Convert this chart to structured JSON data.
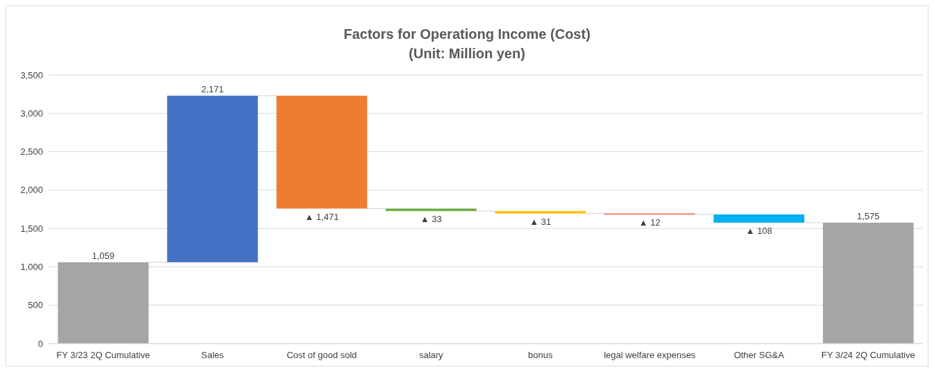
{
  "chart_data": {
    "type": "bar",
    "title": "Factors for Operationg Income (Cost)",
    "subtitle": "(Unit: Million yen)",
    "categories": [
      "FY 3/23 2Q Cumulative",
      "Sales",
      "Cost of good sold",
      "salary",
      "bonus",
      "legal welfare expenses",
      "Other SG&A",
      "FY 3/24 2Q Cumulative"
    ],
    "values": [
      1059,
      2171,
      -1471,
      -33,
      -31,
      -12,
      -108,
      1575
    ],
    "base": [
      0,
      1059,
      3230,
      1759,
      1726,
      1695,
      1683,
      0
    ],
    "colors": [
      "#a5a5a5",
      "#4472c4",
      "#ed7d31",
      "#70ad47",
      "#ffc000",
      "#ff5050",
      "#00b0f0",
      "#a5a5a5"
    ],
    "value_labels": [
      "1,059",
      "2,171",
      "▲ 1,471",
      "▲ 33",
      "▲ 31",
      "▲ 12",
      "▲ 108",
      "1,575"
    ],
    "ylim": [
      0,
      3500
    ],
    "yticks": [
      0,
      500,
      {
        "value": 1000,
        "label": "1,000"
      },
      {
        "value": 1500,
        "label": "1,500"
      },
      {
        "value": 2000,
        "label": "2,000"
      },
      {
        "value": 2500,
        "label": "2,500"
      },
      {
        "value": 3000,
        "label": "3,000"
      },
      {
        "value": 3500,
        "label": "3,500"
      }
    ],
    "grid": "y"
  }
}
